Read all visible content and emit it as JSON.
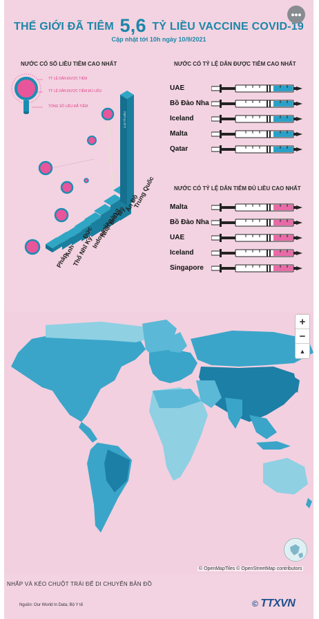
{
  "header": {
    "title_prefix": "THẾ GIỚI ĐÃ TIÊM",
    "title_number": "5,6",
    "title_suffix": "TỶ LIỀU VACCINE COVID-19",
    "subtitle": "Cập nhật tới 10h ngày 10/9/2021",
    "more_label": "•••"
  },
  "left_chart": {
    "title": "NƯỚC CÓ SỐ LIỀU TIÊM CAO NHẤT",
    "legend": [
      "TỶ LỆ DÂN ĐƯỢC TIÊM",
      "TỶ LỆ DÂN ĐƯỢC TIÊM ĐỦ LIỀU",
      "TỔNG SỐ LIỀU ĐÃ TIÊM"
    ],
    "top_value_label": "2,15 TỶ LIỀU",
    "countries": [
      "Trung Quốc",
      "Ấn Độ",
      "Mỹ",
      "Brazil",
      "Nhật Bản",
      "Indonesia",
      "Đức",
      "Thổ Nhĩ Kỳ",
      "Anh",
      "Pháp"
    ],
    "colors": {
      "bar": "#1a7f9e",
      "bar_top": "#2fa6c4",
      "pink": "#e8559a",
      "teal": "#1a8db3"
    }
  },
  "right_top": {
    "title": "NƯỚC CÓ TỶ LỆ DÂN ĐƯỢC TIÊM CAO NHẤT",
    "countries": [
      "UAE",
      "Bồ Đào Nha",
      "Iceland",
      "Malta",
      "Qatar"
    ],
    "fill_color": "#2aa0c8"
  },
  "right_bottom": {
    "title": "NƯỚC CÓ TỶ LỆ DÂN TIÊM ĐỦ LIỀU CAO NHẤT",
    "countries": [
      "Malta",
      "Bồ Đào Nha",
      "UAE",
      "Iceland",
      "Singapore"
    ],
    "fill_color": "#e86aa6"
  },
  "map": {
    "zoom_in": "+",
    "zoom_out": "−",
    "reset": "▲",
    "attribution": "© OpenMapTiles © OpenStreetMap contributors",
    "colors": {
      "ocean": "#f2d0e0",
      "land_light": "#8fd0e3",
      "land_mid": "#3aa5c9",
      "land_dark": "#1c7fa6"
    }
  },
  "footer": {
    "hint": "NHẤP VÀ KÉO CHUỘT TRÁI ĐỂ DI CHUYỂN BẢN ĐỒ",
    "source": "Nguồn: Our World In Data; Bộ Y tế",
    "logo_mark": "©",
    "logo_text": "TTXVN"
  }
}
